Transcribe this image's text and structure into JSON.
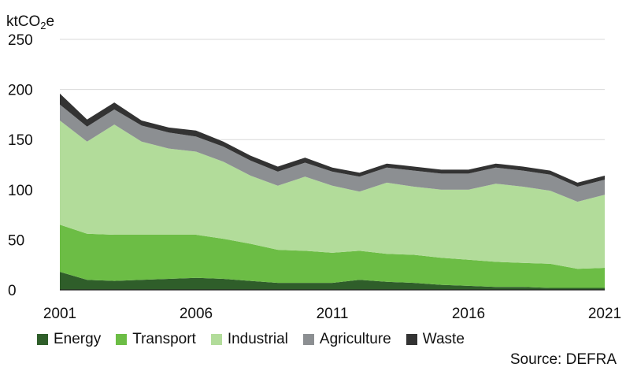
{
  "chart_data": {
    "type": "area",
    "stacked": true,
    "unit_label": {
      "base": "ktCO",
      "sub": "2",
      "suffix": "e"
    },
    "y_ticks": [
      "0",
      "50",
      "100",
      "150",
      "200",
      "250"
    ],
    "ylim": [
      0,
      250
    ],
    "x_tick_labels": [
      "2001",
      "2006",
      "2011",
      "2016",
      "2021"
    ],
    "x": [
      2001,
      2002,
      2003,
      2004,
      2005,
      2006,
      2007,
      2008,
      2009,
      2010,
      2011,
      2012,
      2013,
      2014,
      2015,
      2016,
      2017,
      2018,
      2019,
      2020,
      2021
    ],
    "xlim": [
      2001,
      2021
    ],
    "grid": true,
    "legend_position": "bottom",
    "series": [
      {
        "name": "Energy",
        "color": "#2f5e2a",
        "values": [
          18,
          10,
          9,
          10,
          11,
          12,
          11,
          9,
          7,
          7,
          7,
          10,
          8,
          7,
          5,
          4,
          3,
          3,
          2,
          2,
          2
        ]
      },
      {
        "name": "Transport",
        "color": "#6cbd45",
        "values": [
          47,
          46,
          46,
          45,
          44,
          43,
          40,
          37,
          33,
          32,
          30,
          29,
          28,
          28,
          27,
          26,
          25,
          24,
          24,
          19,
          20
        ]
      },
      {
        "name": "Industrial",
        "color": "#b2dc9a",
        "values": [
          104,
          92,
          110,
          93,
          86,
          83,
          77,
          68,
          64,
          74,
          67,
          59,
          71,
          68,
          68,
          70,
          78,
          76,
          73,
          67,
          73
        ]
      },
      {
        "name": "Agriculture",
        "color": "#8c8f92",
        "values": [
          16,
          15,
          15,
          16,
          16,
          15,
          15,
          15,
          14,
          14,
          14,
          15,
          15,
          16,
          16,
          16,
          16,
          16,
          16,
          15,
          15
        ]
      },
      {
        "name": "Waste",
        "color": "#333333",
        "values": [
          11,
          7,
          7,
          5,
          5,
          6,
          5,
          5,
          5,
          5,
          4,
          4,
          4,
          4,
          4,
          4,
          4,
          4,
          4,
          4,
          4
        ]
      }
    ],
    "source": "Source: DEFRA"
  }
}
